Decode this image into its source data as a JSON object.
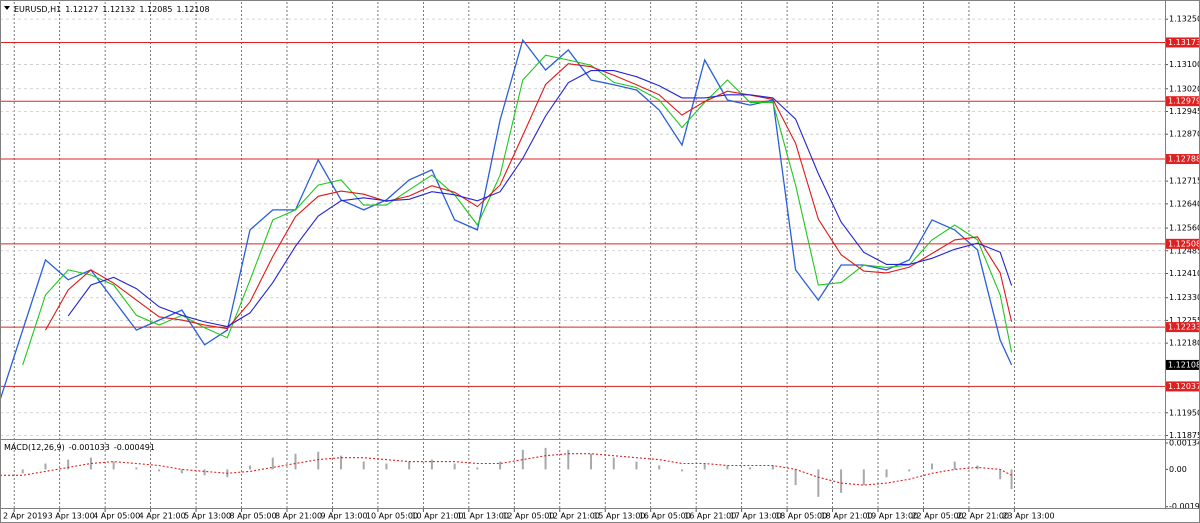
{
  "chart_data": [
    {
      "type": "line",
      "title": "EURUSD,H1",
      "ohlc": [
        1.12127,
        1.12132,
        1.12085,
        1.12108
      ],
      "x": [
        0,
        8,
        16,
        24,
        32,
        40,
        48,
        56,
        64,
        72,
        80,
        88,
        96,
        104,
        112,
        120,
        128,
        136,
        144,
        152,
        160,
        168,
        176,
        184,
        192,
        200,
        208,
        216,
        224,
        232,
        240,
        248,
        256,
        264,
        272,
        280,
        288,
        296,
        304,
        312,
        320,
        328,
        336,
        344,
        352,
        356
      ],
      "xlim": [
        0,
        410
      ],
      "xticks": [
        {
          "value": 5,
          "label": "2 Apr 2019"
        },
        {
          "value": 21,
          "label": "3 Apr 13:00"
        },
        {
          "value": 37,
          "label": "4 Apr 05:00"
        },
        {
          "value": 53,
          "label": "4 Apr 21:00"
        },
        {
          "value": 69,
          "label": "5 Apr 13:00"
        },
        {
          "value": 85,
          "label": "8 Apr 05:00"
        },
        {
          "value": 101,
          "label": "8 Apr 21:00"
        },
        {
          "value": 117,
          "label": "9 Apr 13:00"
        },
        {
          "value": 133,
          "label": "10 Apr 05:00"
        },
        {
          "value": 149,
          "label": "10 Apr 21:00"
        },
        {
          "value": 165,
          "label": "11 Apr 13:00"
        },
        {
          "value": 181,
          "label": "12 Apr 05:00"
        },
        {
          "value": 197,
          "label": "12 Apr 21:00"
        },
        {
          "value": 213,
          "label": "15 Apr 13:00"
        },
        {
          "value": 229,
          "label": "16 Apr 05:00"
        },
        {
          "value": 245,
          "label": "16 Apr 21:00"
        },
        {
          "value": 261,
          "label": "17 Apr 13:00"
        },
        {
          "value": 277,
          "label": "18 Apr 05:00"
        },
        {
          "value": 293,
          "label": "18 Apr 21:00"
        },
        {
          "value": 309,
          "label": "19 Apr 13:00"
        },
        {
          "value": 325,
          "label": "22 Apr 05:00"
        },
        {
          "value": 341,
          "label": "22 Apr 21:00"
        },
        {
          "value": 357,
          "label": "23 Apr 13:00"
        }
      ],
      "ylim": [
        1.1187,
        1.133
      ],
      "yticks": [
        {
          "value": 1.1325,
          "label": "1.13250"
        },
        {
          "value": 1.131,
          "label": "1.13100"
        },
        {
          "value": 1.1302,
          "label": "1.13020"
        },
        1.12945,
        {
          "value": 1.1287,
          "label": "1.12870"
        },
        1.12715,
        {
          "value": 1.1264,
          "label": "1.12640"
        },
        {
          "value": 1.1256,
          "label": "1.12560"
        },
        1.12485,
        {
          "value": 1.1241,
          "label": "1.12410"
        },
        {
          "value": 1.1233,
          "label": "1.12330"
        },
        1.12255,
        {
          "value": 1.1218,
          "label": "1.12180"
        },
        {
          "value": 1.1195,
          "label": "1.11950"
        },
        1.11875
      ],
      "grid": true,
      "series": [
        {
          "color": "#2a5fd8",
          "values": [
            1.11992,
            1.12223,
            1.12455,
            1.12389,
            1.12422,
            1.12322,
            1.12223,
            1.12256,
            1.12289,
            1.12174,
            1.12223,
            1.12554,
            1.1262,
            1.1262,
            1.12785,
            1.12653,
            1.1262,
            1.12653,
            1.12719,
            1.12752,
            1.12587,
            1.12554,
            1.12917,
            1.13181,
            1.13082,
            1.13148,
            1.13049,
            1.13033,
            1.13016,
            1.1295,
            1.12834,
            1.13115,
            1.12983,
            1.12966,
            1.12983,
            1.12422,
            1.12322,
            1.12438,
            1.12438,
            1.12422,
            1.12455,
            1.12587,
            1.12554,
            1.12488,
            1.1219,
            1.12108
          ]
        },
        {
          "color": "#1ec81e",
          "values": [
            null,
            1.12108,
            1.12339,
            1.12422,
            1.12405,
            1.12372,
            1.12272,
            1.1224,
            1.12272,
            1.12231,
            1.12198,
            1.12388,
            1.12587,
            1.1262,
            1.12702,
            1.12719,
            1.12636,
            1.12636,
            1.12686,
            1.12735,
            1.1267,
            1.1257,
            1.12735,
            1.13049,
            1.13131,
            1.13115,
            1.13098,
            1.13041,
            1.13024,
            1.12983,
            1.12892,
            1.12975,
            1.13049,
            1.12975,
            1.12975,
            1.12702,
            1.12372,
            1.1238,
            1.12438,
            1.1243,
            1.12438,
            1.12521,
            1.1257,
            1.12521,
            1.12339,
            1.12149
          ]
        },
        {
          "color": "#e01818",
          "values": [
            null,
            null,
            1.12223,
            1.12356,
            1.12422,
            1.12378,
            1.12322,
            1.12267,
            1.12256,
            1.1224,
            1.12228,
            1.12316,
            1.12466,
            1.12598,
            1.12665,
            1.12682,
            1.12672,
            1.12648,
            1.12666,
            1.127,
            1.12678,
            1.12631,
            1.12702,
            1.12866,
            1.13034,
            1.13103,
            1.13093,
            1.13065,
            1.13033,
            1.13,
            1.12933,
            1.12978,
            1.13012,
            1.12999,
            1.12985,
            1.1284,
            1.1259,
            1.12472,
            1.12418,
            1.12412,
            1.12431,
            1.12476,
            1.12521,
            1.12531,
            1.12412,
            1.1225
          ]
        },
        {
          "color": "#2424d0",
          "values": [
            null,
            null,
            null,
            1.1227,
            1.12372,
            1.12397,
            1.1236,
            1.123,
            1.12272,
            1.1225,
            1.12235,
            1.1228,
            1.1238,
            1.125,
            1.126,
            1.1265,
            1.1266,
            1.1265,
            1.12655,
            1.1268,
            1.1267,
            1.1265,
            1.1268,
            1.1279,
            1.1293,
            1.1304,
            1.1308,
            1.1308,
            1.1306,
            1.1303,
            1.1299,
            1.1299,
            1.13,
            1.13,
            1.1299,
            1.1292,
            1.1274,
            1.1258,
            1.1248,
            1.1244,
            1.1244,
            1.1246,
            1.1249,
            1.1251,
            1.1248,
            1.1237
          ]
        }
      ],
      "levels": [
        1.13173,
        1.12979,
        1.12788,
        1.12508,
        1.12233,
        1.12037
      ],
      "level_color": "#e02020",
      "current_price": 1.12108
    },
    {
      "type": "macd",
      "title": "MACD(12,26,9)",
      "indicator_values": [
        -0.001033,
        -0.000491
      ],
      "ylim": [
        -0.00197,
        0.00145
      ],
      "yticks": [
        0.001347,
        {
          "value": 0,
          "label": "0.00"
        },
        -0.001904
      ],
      "series": [
        {
          "type": "bar",
          "color": "#a8a8a8",
          "values": [
            -0.0004,
            -0.0002,
            0.0003,
            0.0005,
            0.0006,
            0.0004,
            0.0001,
            -0.0001,
            -0.0002,
            -0.0003,
            -0.0004,
            0.0002,
            0.0006,
            0.0008,
            0.0009,
            0.0007,
            0.0004,
            0.0003,
            0.0004,
            0.0005,
            0.0003,
            0.0001,
            0.0004,
            0.001,
            0.0011,
            0.001,
            0.0008,
            0.0006,
            0.0004,
            0.0002,
            -0.0001,
            0.0003,
            0.0002,
            0.0001,
            0.0002,
            -0.0008,
            -0.0014,
            -0.0012,
            -0.0008,
            -0.0004,
            -0.0001,
            0.0003,
            0.0004,
            0.0002,
            -0.0005,
            -0.001
          ]
        },
        {
          "type": "line",
          "color": "#e02020",
          "dashed": true,
          "values": [
            -0.0003,
            -0.0003,
            -0.0001,
            0.0001,
            0.0003,
            0.0004,
            0.0003,
            0.0002,
            0,
            -0.0001,
            -0.0002,
            -0.0001,
            0.0001,
            0.0003,
            0.0005,
            0.0006,
            0.0006,
            0.0005,
            0.0004,
            0.0004,
            0.0004,
            0.0003,
            0.0003,
            0.0005,
            0.0007,
            0.0008,
            0.0008,
            0.0007,
            0.0006,
            0.0005,
            0.0003,
            0.0003,
            0.0002,
            0.0002,
            0.0002,
            0,
            -0.0004,
            -0.0007,
            -0.0008,
            -0.0007,
            -0.0005,
            -0.0002,
            0,
            0.0001,
            0,
            -0.0003
          ]
        }
      ]
    }
  ]
}
